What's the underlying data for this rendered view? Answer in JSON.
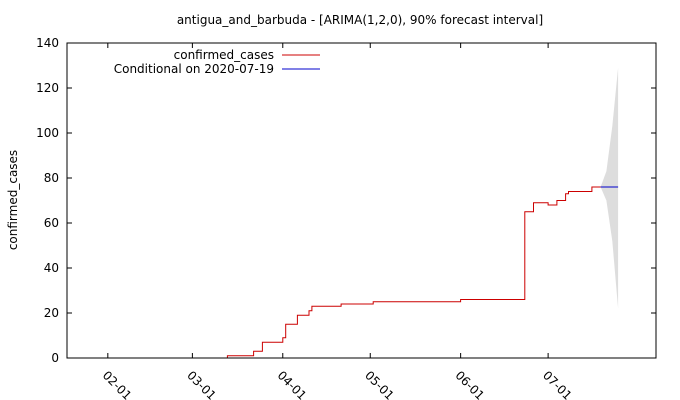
{
  "chart_data": {
    "type": "line",
    "title": "antigua_and_barbuda -  [ARIMA(1,2,0), 90% forecast interval]",
    "xlabel": "",
    "ylabel": "confirmed_cases",
    "ylim": [
      0,
      140
    ],
    "yticks": [
      0,
      20,
      40,
      60,
      80,
      100,
      120,
      140
    ],
    "xlim": [
      "2020-01-18",
      "2020-08-07"
    ],
    "xticks": [
      {
        "date": "2020-02-01",
        "label": "02-01"
      },
      {
        "date": "2020-03-01",
        "label": "03-01"
      },
      {
        "date": "2020-04-01",
        "label": "04-01"
      },
      {
        "date": "2020-05-01",
        "label": "05-01"
      },
      {
        "date": "2020-06-01",
        "label": "06-01"
      },
      {
        "date": "2020-07-01",
        "label": "07-01"
      }
    ],
    "legend_position": "top-left",
    "grid": false,
    "series": [
      {
        "name": "confirmed_cases",
        "color": "#cc0000",
        "style": "step",
        "points": [
          [
            "2020-03-11",
            0
          ],
          [
            "2020-03-13",
            1
          ],
          [
            "2020-03-21",
            1
          ],
          [
            "2020-03-22",
            3
          ],
          [
            "2020-03-24",
            3
          ],
          [
            "2020-03-25",
            7
          ],
          [
            "2020-03-31",
            7
          ],
          [
            "2020-04-01",
            9
          ],
          [
            "2020-04-02",
            15
          ],
          [
            "2020-04-05",
            15
          ],
          [
            "2020-04-06",
            19
          ],
          [
            "2020-04-09",
            19
          ],
          [
            "2020-04-10",
            21
          ],
          [
            "2020-04-11",
            23
          ],
          [
            "2020-04-20",
            23
          ],
          [
            "2020-04-21",
            24
          ],
          [
            "2020-05-01",
            24
          ],
          [
            "2020-05-02",
            25
          ],
          [
            "2020-05-31",
            25
          ],
          [
            "2020-06-01",
            26
          ],
          [
            "2020-06-22",
            26
          ],
          [
            "2020-06-23",
            65
          ],
          [
            "2020-06-25",
            65
          ],
          [
            "2020-06-26",
            69
          ],
          [
            "2020-06-30",
            69
          ],
          [
            "2020-07-01",
            68
          ],
          [
            "2020-07-03",
            68
          ],
          [
            "2020-07-04",
            70
          ],
          [
            "2020-07-06",
            70
          ],
          [
            "2020-07-07",
            73
          ],
          [
            "2020-07-08",
            74
          ],
          [
            "2020-07-15",
            74
          ],
          [
            "2020-07-16",
            76
          ],
          [
            "2020-07-19",
            76
          ]
        ]
      },
      {
        "name": "Conditional on 2020-07-19",
        "color": "#0000cc",
        "style": "line",
        "points": [
          [
            "2020-07-19",
            76
          ],
          [
            "2020-07-25",
            76
          ]
        ]
      }
    ],
    "forecast_interval": {
      "color": "#dddddd",
      "points": [
        [
          "2020-07-19",
          76,
          76
        ],
        [
          "2020-07-21",
          70,
          83
        ],
        [
          "2020-07-23",
          52,
          103
        ],
        [
          "2020-07-25",
          22,
          129
        ]
      ]
    }
  }
}
